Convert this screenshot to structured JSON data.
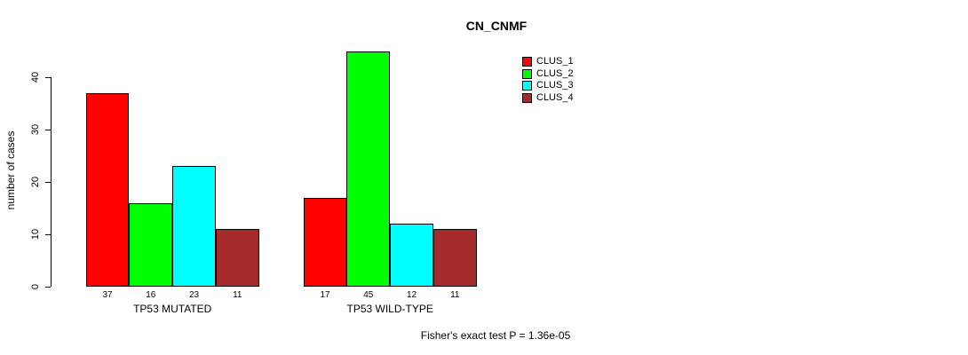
{
  "title": "CN_CNMF",
  "footer": "Fisher's exact test P = 1.36e-05",
  "chart_data": {
    "type": "bar",
    "title": "CN_CNMF",
    "xlabel": "",
    "ylabel": "number of cases",
    "ylim": [
      0,
      45
    ],
    "yticks": [
      0,
      10,
      20,
      30,
      40
    ],
    "categories": [
      "TP53 MUTATED",
      "TP53 WILD-TYPE"
    ],
    "series": [
      {
        "name": "CLUS_1",
        "color": "#ff0000",
        "values": [
          37,
          17
        ]
      },
      {
        "name": "CLUS_2",
        "color": "#00ff00",
        "values": [
          16,
          45
        ]
      },
      {
        "name": "CLUS_3",
        "color": "#00ffff",
        "values": [
          23,
          12
        ]
      },
      {
        "name": "CLUS_4",
        "color": "#a52a2a",
        "values": [
          11,
          11
        ]
      }
    ],
    "bar_value_labels": [
      [
        37,
        16,
        23,
        11
      ],
      [
        17,
        45,
        12,
        11
      ]
    ],
    "legend_position": "top-right",
    "grid": false,
    "annotation": "Fisher's exact test P = 1.36e-05"
  }
}
